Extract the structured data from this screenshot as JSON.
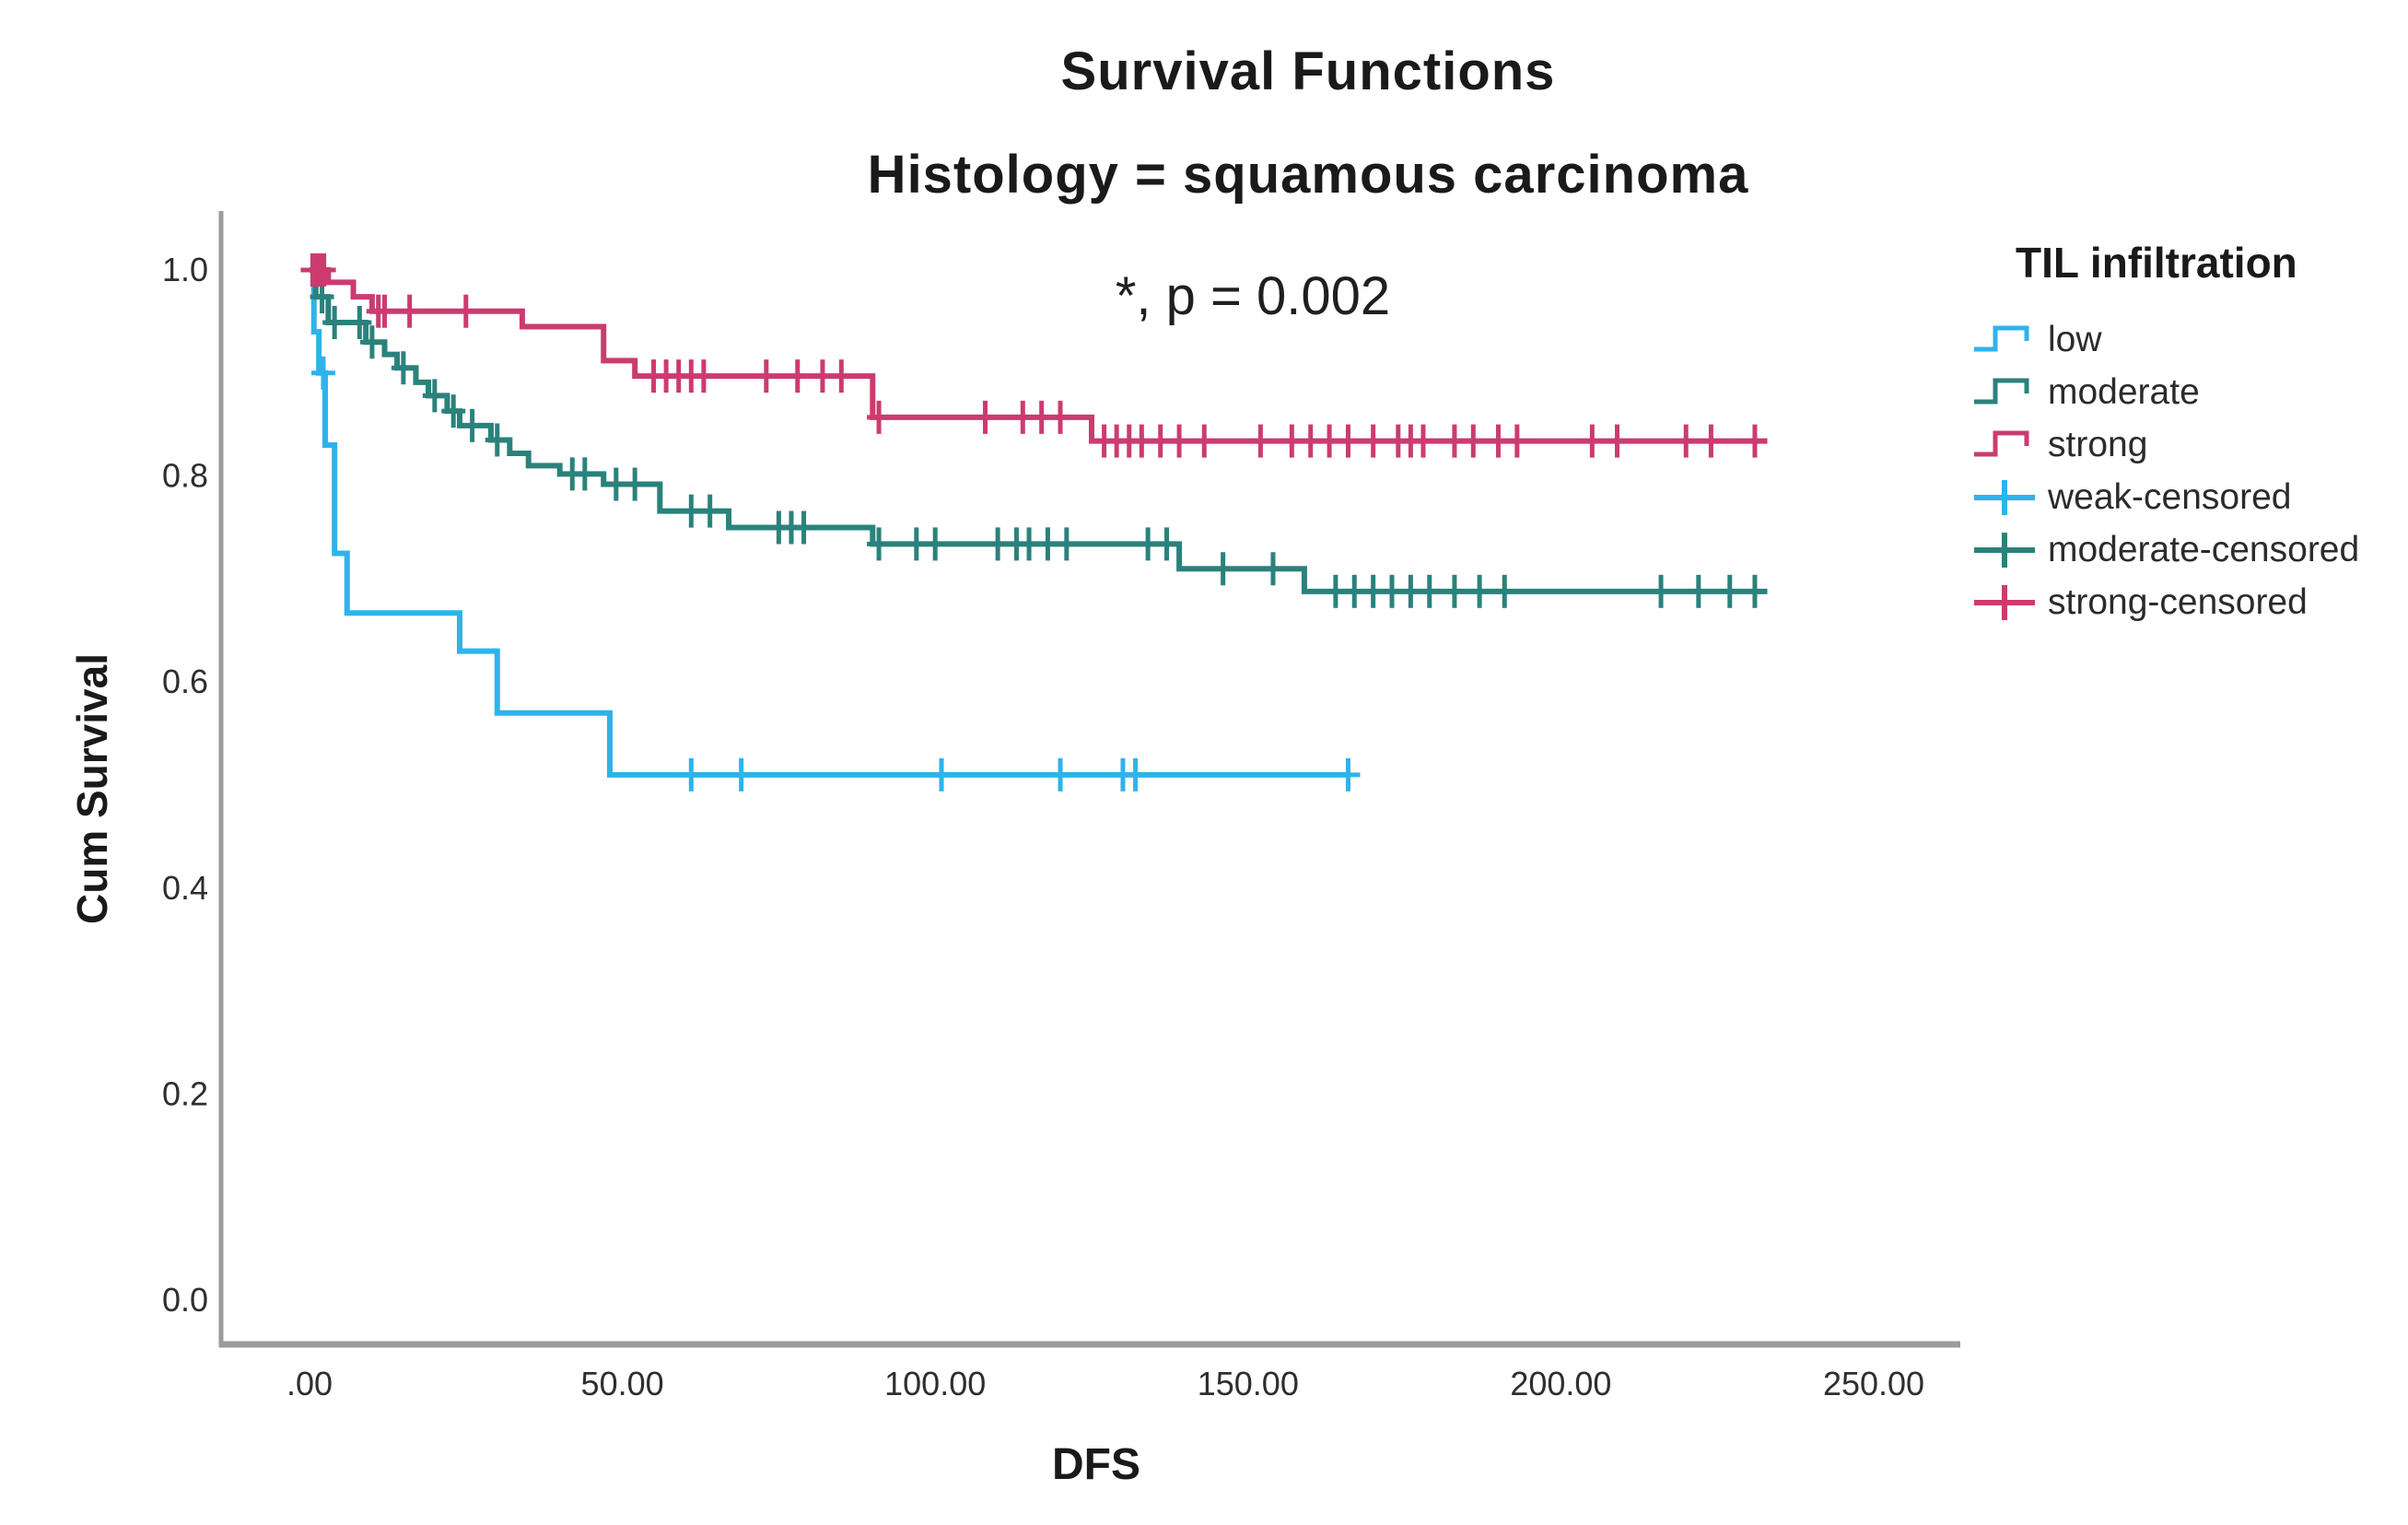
{
  "page": {
    "title": "Survival Functions",
    "subtitle": "Histology = squamous carcinoma",
    "annotation": "*, p = 0.002"
  },
  "colors": {
    "low": "#2eb3eb",
    "moderate": "#2a827b",
    "strong": "#cc3b6f",
    "axis": "#9b9b9b",
    "tick_text": "#2e2e2e",
    "text": "#1a1a1a"
  },
  "chart_data": {
    "type": "line",
    "subtype": "kaplan-meier-step",
    "title": "Survival Functions",
    "subtitle": "Histology = squamous carcinoma",
    "annotation": "*, p = 0.002",
    "xlabel": "DFS",
    "ylabel": "Cum Survival",
    "xlim": [
      0,
      250
    ],
    "ylim": [
      0.0,
      1.0
    ],
    "grid": false,
    "x_ticks": [
      {
        "value": 0,
        "label": ".00"
      },
      {
        "value": 50,
        "label": "50.00"
      },
      {
        "value": 100,
        "label": "100.00"
      },
      {
        "value": 150,
        "label": "150.00"
      },
      {
        "value": 200,
        "label": "200.00"
      },
      {
        "value": 250,
        "label": "250.00"
      }
    ],
    "y_ticks": [
      {
        "value": 1.0,
        "label": "1.0"
      },
      {
        "value": 0.8,
        "label": "0.8"
      },
      {
        "value": 0.6,
        "label": "0.6"
      },
      {
        "value": 0.4,
        "label": "0.4"
      },
      {
        "value": 0.2,
        "label": "0.2"
      },
      {
        "value": 0.0,
        "label": "0.0"
      }
    ],
    "legend": {
      "title": "TIL infiltration",
      "position": "right",
      "entries": [
        {
          "label": "low",
          "type": "step",
          "color": "#2eb3eb"
        },
        {
          "label": "moderate",
          "type": "step",
          "color": "#2a827b"
        },
        {
          "label": "strong",
          "type": "step",
          "color": "#cc3b6f"
        },
        {
          "label": "weak-censored",
          "type": "censored",
          "color": "#2eb3eb"
        },
        {
          "label": "moderate-censored",
          "type": "censored",
          "color": "#2a827b"
        },
        {
          "label": "strong-censored",
          "type": "censored",
          "color": "#cc3b6f"
        }
      ]
    },
    "series": [
      {
        "name": "low",
        "color": "#2eb3eb",
        "end_x": 166,
        "points": [
          [
            0,
            1.0
          ],
          [
            0.7,
            0.94
          ],
          [
            1.5,
            0.9
          ],
          [
            2.5,
            0.83
          ],
          [
            4,
            0.725
          ],
          [
            6,
            0.667
          ],
          [
            24,
            0.63
          ],
          [
            30,
            0.57
          ],
          [
            48,
            0.51
          ]
        ],
        "censored": [
          [
            2.2,
            0.9
          ],
          [
            61,
            0.51
          ],
          [
            69,
            0.51
          ],
          [
            101,
            0.51
          ],
          [
            120,
            0.51
          ],
          [
            130,
            0.51
          ],
          [
            132,
            0.51
          ],
          [
            166,
            0.51
          ]
        ]
      },
      {
        "name": "moderate",
        "color": "#2a827b",
        "end_x": 233,
        "points": [
          [
            0,
            1.0
          ],
          [
            1,
            0.974
          ],
          [
            3,
            0.949
          ],
          [
            9,
            0.93
          ],
          [
            12,
            0.918
          ],
          [
            14,
            0.905
          ],
          [
            17,
            0.891
          ],
          [
            19,
            0.878
          ],
          [
            22,
            0.863
          ],
          [
            24,
            0.849
          ],
          [
            29,
            0.835
          ],
          [
            32,
            0.822
          ],
          [
            35,
            0.81
          ],
          [
            40,
            0.802
          ],
          [
            47,
            0.792
          ],
          [
            56,
            0.766
          ],
          [
            67,
            0.75
          ],
          [
            90,
            0.734
          ],
          [
            139,
            0.71
          ],
          [
            159,
            0.688
          ]
        ],
        "censored": [
          [
            2,
            0.974
          ],
          [
            4,
            0.949
          ],
          [
            8,
            0.949
          ],
          [
            10,
            0.93
          ],
          [
            15,
            0.905
          ],
          [
            20,
            0.878
          ],
          [
            23,
            0.863
          ],
          [
            26,
            0.849
          ],
          [
            30,
            0.835
          ],
          [
            42,
            0.802
          ],
          [
            44,
            0.802
          ],
          [
            49,
            0.792
          ],
          [
            52,
            0.792
          ],
          [
            61,
            0.766
          ],
          [
            64,
            0.766
          ],
          [
            75,
            0.75
          ],
          [
            77,
            0.75
          ],
          [
            79,
            0.75
          ],
          [
            91,
            0.734
          ],
          [
            97,
            0.734
          ],
          [
            100,
            0.734
          ],
          [
            110,
            0.734
          ],
          [
            113,
            0.734
          ],
          [
            115,
            0.734
          ],
          [
            118,
            0.734
          ],
          [
            121,
            0.734
          ],
          [
            134,
            0.734
          ],
          [
            137,
            0.734
          ],
          [
            146,
            0.71
          ],
          [
            154,
            0.71
          ],
          [
            164,
            0.688
          ],
          [
            167,
            0.688
          ],
          [
            170,
            0.688
          ],
          [
            173,
            0.688
          ],
          [
            176,
            0.688
          ],
          [
            179,
            0.688
          ],
          [
            183,
            0.688
          ],
          [
            187,
            0.688
          ],
          [
            191,
            0.688
          ],
          [
            216,
            0.688
          ],
          [
            222,
            0.688
          ],
          [
            227,
            0.688
          ],
          [
            231,
            0.688
          ]
        ]
      },
      {
        "name": "strong",
        "color": "#cc3b6f",
        "end_x": 233,
        "points": [
          [
            0,
            1.0
          ],
          [
            3,
            0.988
          ],
          [
            7,
            0.974
          ],
          [
            10,
            0.96
          ],
          [
            34,
            0.945
          ],
          [
            47,
            0.912
          ],
          [
            52,
            0.897
          ],
          [
            90,
            0.857
          ],
          [
            125,
            0.834
          ]
        ],
        "censored": [
          [
            0.5,
            1.0
          ],
          [
            1.1,
            1.0
          ],
          [
            1.7,
            1.0
          ],
          [
            2.3,
            1.0
          ],
          [
            11,
            0.96
          ],
          [
            12,
            0.96
          ],
          [
            16,
            0.96
          ],
          [
            25,
            0.96
          ],
          [
            55,
            0.897
          ],
          [
            57,
            0.897
          ],
          [
            59,
            0.897
          ],
          [
            61,
            0.897
          ],
          [
            63,
            0.897
          ],
          [
            73,
            0.897
          ],
          [
            78,
            0.897
          ],
          [
            82,
            0.897
          ],
          [
            85,
            0.897
          ],
          [
            91,
            0.857
          ],
          [
            108,
            0.857
          ],
          [
            114,
            0.857
          ],
          [
            117,
            0.857
          ],
          [
            120,
            0.857
          ],
          [
            127,
            0.834
          ],
          [
            129,
            0.834
          ],
          [
            131,
            0.834
          ],
          [
            133,
            0.834
          ],
          [
            136,
            0.834
          ],
          [
            139,
            0.834
          ],
          [
            143,
            0.834
          ],
          [
            152,
            0.834
          ],
          [
            157,
            0.834
          ],
          [
            160,
            0.834
          ],
          [
            163,
            0.834
          ],
          [
            166,
            0.834
          ],
          [
            170,
            0.834
          ],
          [
            174,
            0.834
          ],
          [
            176,
            0.834
          ],
          [
            178,
            0.834
          ],
          [
            183,
            0.834
          ],
          [
            186,
            0.834
          ],
          [
            190,
            0.834
          ],
          [
            193,
            0.834
          ],
          [
            205,
            0.834
          ],
          [
            209,
            0.834
          ],
          [
            220,
            0.834
          ],
          [
            224,
            0.834
          ],
          [
            231,
            0.834
          ]
        ]
      }
    ]
  }
}
